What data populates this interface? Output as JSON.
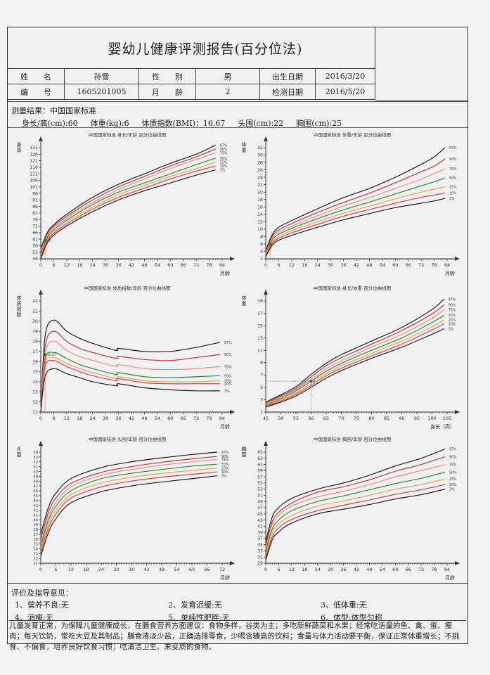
{
  "header": {
    "title": "婴幼儿健康评测报告(百分位法)"
  },
  "info": {
    "name_label": "姓　　名",
    "name": "孙雪",
    "sex_label": "性　　别",
    "sex": "男",
    "birth_label": "出生日期",
    "birth": "2016/3/20",
    "id_label": "编　　号",
    "id": "1605201005",
    "age_label": "月　　龄",
    "age": "2",
    "test_label": "检测日期",
    "test_date": "2016/5/20"
  },
  "measurement": {
    "heading": "测量结果：中国国家标准",
    "height": "身长/高(cm):60",
    "weight": "体重(kg):6",
    "bmi": "体质指数(BMI)：16.67",
    "head": "头围(cm):22",
    "chest": "胸围(cm):25"
  },
  "colors": {
    "p97": "#1e1e1e",
    "p90": "#c0353a",
    "p75": "#f09070",
    "p50": "#2e8a34",
    "p25": "#f0a050",
    "p10": "#d8404a",
    "p3": "#1e1e1e"
  },
  "chart_data": [
    {
      "type": "line",
      "title": "中国国家标准 身长/年龄 百分位曲线图",
      "ylabel": "身高",
      "xlabel": "月龄",
      "xlim": [
        0,
        84
      ],
      "ylim": [
        46,
        131
      ],
      "xticks": [
        0,
        6,
        12,
        18,
        24,
        30,
        36,
        42,
        48,
        54,
        60,
        66,
        72,
        78,
        84
      ],
      "yticks": [
        46,
        51,
        56,
        61,
        66,
        71,
        76,
        81,
        86,
        91,
        96,
        101,
        106,
        111,
        116,
        121,
        126,
        131
      ],
      "x": [
        0,
        3,
        6,
        12,
        24,
        36,
        48,
        60,
        72,
        81
      ],
      "series": [
        {
          "name": "97%",
          "values": [
            54,
            66,
            72,
            80,
            93,
            103,
            111,
            119,
            126,
            133
          ]
        },
        {
          "name": "90%",
          "values": [
            53,
            65,
            71,
            78.5,
            91,
            101,
            109,
            117,
            124,
            130
          ]
        },
        {
          "name": "75%",
          "values": [
            52,
            63.5,
            69.5,
            77,
            89,
            99,
            107,
            115,
            122,
            127
          ]
        },
        {
          "name": "50%",
          "values": [
            50,
            62,
            68,
            75.5,
            87.5,
            97,
            104,
            111,
            118,
            123
          ]
        },
        {
          "name": "25%",
          "values": [
            48.5,
            60.5,
            66.5,
            74,
            85.5,
            95,
            102,
            109,
            115,
            120
          ]
        },
        {
          "name": "10%",
          "values": [
            47.5,
            59.5,
            65.5,
            72.5,
            84,
            93,
            100,
            107,
            113,
            117
          ]
        },
        {
          "name": "3%",
          "values": [
            46,
            58,
            64,
            71,
            82,
            91,
            98,
            104,
            110,
            114
          ]
        }
      ],
      "point": {
        "x": 2,
        "y": 60,
        "label": "60"
      }
    },
    {
      "type": "line",
      "title": "中国国家标准 体重/年龄 百分位曲线图",
      "ylabel": "体重",
      "xlabel": "月龄",
      "xlim": [
        0,
        84
      ],
      "ylim": [
        2,
        32
      ],
      "xticks": [
        0,
        6,
        12,
        18,
        24,
        30,
        36,
        42,
        48,
        54,
        60,
        66,
        72,
        78,
        84
      ],
      "yticks": [
        2,
        4,
        6,
        8,
        10,
        12,
        14,
        16,
        18,
        20,
        22,
        24,
        26,
        28,
        30,
        32
      ],
      "x": [
        0,
        3,
        6,
        12,
        24,
        36,
        48,
        60,
        72,
        78,
        83
      ],
      "series": [
        {
          "name": "97%",
          "values": [
            4.3,
            8.5,
            10.5,
            12.3,
            15.5,
            18.5,
            21,
            24,
            27.5,
            29.5,
            32
          ]
        },
        {
          "name": "90%",
          "values": [
            4,
            8,
            9.8,
            11.5,
            14.5,
            17.2,
            19.7,
            22.5,
            25.5,
            27,
            29
          ]
        },
        {
          "name": "75%",
          "values": [
            3.7,
            7.5,
            9.2,
            10.8,
            13.6,
            16.2,
            18.5,
            21,
            23.5,
            25,
            26.3
          ]
        },
        {
          "name": "50%",
          "values": [
            3.3,
            7,
            8.6,
            10.2,
            12.8,
            15.2,
            17.3,
            19.5,
            21.7,
            22.8,
            23.8
          ]
        },
        {
          "name": "25%",
          "values": [
            3.1,
            6.5,
            8,
            9.6,
            12,
            14.3,
            16.2,
            18.2,
            20,
            20.8,
            21.5
          ]
        },
        {
          "name": "10%",
          "values": [
            2.9,
            6.1,
            7.5,
            9,
            11.3,
            13.5,
            15.3,
            17,
            18.6,
            19.2,
            19.8
          ]
        },
        {
          "name": "3%",
          "values": [
            2.6,
            5.6,
            7,
            8.3,
            10.5,
            12.5,
            14.2,
            15.8,
            17,
            17.6,
            18.3
          ]
        }
      ],
      "point": {
        "x": 2,
        "y": 6,
        "label": ""
      }
    },
    {
      "type": "line",
      "title": "中国国家标准 体质指数/年龄 百分位曲线图",
      "ylabel": "体质指数",
      "xlabel": "月龄",
      "xlim": [
        0,
        84
      ],
      "ylim": [
        11,
        22
      ],
      "xticks": [
        0,
        6,
        12,
        18,
        24,
        30,
        36,
        42,
        48,
        54,
        60,
        66,
        72,
        78,
        84
      ],
      "yticks": [
        11,
        12,
        13,
        14,
        15,
        16,
        17,
        18,
        19,
        20,
        21,
        22
      ],
      "x": [
        0,
        2,
        6,
        12,
        18,
        24,
        35,
        36,
        48,
        60,
        72,
        83
      ],
      "series": [
        {
          "name": "97%",
          "values": [
            11,
            18.5,
            20.1,
            19,
            18.3,
            17.8,
            17.1,
            17.3,
            17,
            17,
            17.4,
            17.9
          ]
        },
        {
          "name": "90%",
          "values": [
            11,
            17.5,
            19,
            18,
            17.3,
            16.9,
            16.3,
            16.5,
            16.2,
            16.1,
            16.4,
            16.7
          ]
        },
        {
          "name": "75%",
          "values": [
            11,
            16.8,
            18,
            17.1,
            16.5,
            16.1,
            15.5,
            15.7,
            15.3,
            15.2,
            15.3,
            15.5
          ]
        },
        {
          "name": "50%",
          "values": [
            11,
            16.2,
            16.9,
            16.3,
            15.7,
            15.3,
            14.7,
            14.9,
            14.5,
            14.4,
            14.5,
            14.6
          ]
        },
        {
          "name": "25%",
          "values": [
            11,
            15.8,
            16.4,
            15.8,
            15.3,
            14.9,
            14.3,
            14.5,
            14.1,
            14,
            14,
            14.1
          ]
        },
        {
          "name": "10%",
          "values": [
            11,
            15.5,
            16.1,
            15.5,
            15,
            14.6,
            14.1,
            14.3,
            13.9,
            13.8,
            13.8,
            13.8
          ]
        },
        {
          "name": "3%",
          "values": [
            11,
            14.5,
            15.3,
            14.8,
            14.4,
            14,
            13.6,
            13.8,
            13.4,
            13.2,
            13.1,
            13.1
          ]
        }
      ],
      "point": {
        "x": 2,
        "y": 16.67,
        "label": "16.67"
      }
    },
    {
      "type": "line",
      "title": "中国国家标准 身长/体重 百分位曲线图",
      "ylabel": "体重",
      "xlabel": "身长（高）",
      "xlim": [
        45,
        105
      ],
      "ylim": [
        1,
        19
      ],
      "xticks": [
        45,
        50,
        55,
        60,
        65,
        70,
        75,
        80,
        85,
        90,
        95,
        100,
        105
      ],
      "yticks": [
        1,
        3,
        5,
        7,
        9,
        11,
        13,
        15,
        17,
        19
      ],
      "x": [
        45,
        50,
        55,
        60,
        65,
        70,
        80,
        90,
        100,
        104
      ],
      "series": [
        {
          "name": "97%",
          "values": [
            2.6,
            3.8,
            5.1,
            7.1,
            8.9,
            10.3,
            12.5,
            14.7,
            17.6,
            19.3
          ]
        },
        {
          "name": "90%",
          "values": [
            2.4,
            3.6,
            4.8,
            6.7,
            8.5,
            9.8,
            12,
            14.2,
            16.9,
            18.4
          ]
        },
        {
          "name": "75%",
          "values": [
            2.3,
            3.4,
            4.6,
            6.3,
            8,
            9.3,
            11.5,
            13.6,
            16.2,
            17.6
          ]
        },
        {
          "name": "50%",
          "values": [
            2.1,
            3.2,
            4.4,
            6,
            7.6,
            8.9,
            11,
            13,
            15.5,
            16.7
          ]
        },
        {
          "name": "25%",
          "values": [
            2,
            3,
            4.1,
            5.6,
            7.2,
            8.5,
            10.5,
            12.5,
            14.8,
            15.9
          ]
        },
        {
          "name": "10%",
          "values": [
            1.9,
            2.8,
            3.9,
            5.3,
            6.9,
            8.1,
            10.1,
            12,
            14.3,
            15.3
          ]
        },
        {
          "name": "3%",
          "values": [
            1.8,
            2.6,
            3.6,
            5,
            6.5,
            7.7,
            9.7,
            11.5,
            13.6,
            14.5
          ]
        }
      ],
      "point": {
        "x": 60,
        "y": 6,
        "label": "6",
        "guides": true
      }
    },
    {
      "type": "line",
      "title": "中国国家标准 头围/年龄 百分位曲线图",
      "ylabel": "头围",
      "xlabel": "月龄",
      "xlim": [
        0,
        72
      ],
      "ylim": [
        31,
        54
      ],
      "xticks": [
        0,
        6,
        12,
        18,
        24,
        30,
        36,
        42,
        48,
        54,
        60,
        66,
        72
      ],
      "yticks": [
        31,
        32,
        33,
        34,
        35,
        36,
        37,
        38,
        39,
        40,
        41,
        42,
        43,
        44,
        45,
        46,
        47,
        48,
        49,
        50,
        51,
        52,
        53,
        54
      ],
      "x": [
        0,
        3,
        6,
        12,
        24,
        36,
        48,
        60,
        70
      ],
      "series": [
        {
          "name": "97%",
          "values": [
            37,
            42.5,
            45.5,
            48.5,
            50.8,
            52,
            52.8,
            53.5,
            54
          ]
        },
        {
          "name": "90%",
          "values": [
            36,
            41.5,
            44.5,
            47.5,
            49.8,
            51,
            51.9,
            52.6,
            53.1
          ]
        },
        {
          "name": "75%",
          "values": [
            35,
            40.5,
            43.5,
            46.8,
            49.2,
            50.4,
            51.3,
            52,
            52.5
          ]
        },
        {
          "name": "50%",
          "values": [
            34.5,
            39.8,
            42.8,
            46,
            48.5,
            49.6,
            50.4,
            51.1,
            51.5
          ]
        },
        {
          "name": "25%",
          "values": [
            34,
            39,
            42,
            45.2,
            47.6,
            48.8,
            49.6,
            50.2,
            50.7
          ]
        },
        {
          "name": "10%",
          "values": [
            33.3,
            38.2,
            41.2,
            44.5,
            46.8,
            48,
            48.8,
            49.4,
            49.9
          ]
        },
        {
          "name": "3%",
          "values": [
            32.5,
            37.3,
            40.2,
            43.5,
            45.8,
            47,
            47.8,
            48.5,
            49.1
          ]
        }
      ]
    },
    {
      "type": "line",
      "title": "中国国家标准 胸围/年龄 百分位曲线图",
      "ylabel": "胸围",
      "xlabel": "月龄",
      "xlim": [
        0,
        84
      ],
      "ylim": [
        29,
        65
      ],
      "xticks": [
        0,
        6,
        12,
        18,
        24,
        30,
        36,
        42,
        48,
        54,
        60,
        66,
        72,
        78,
        84
      ],
      "yticks": [
        29,
        31,
        33,
        35,
        37,
        39,
        41,
        43,
        45,
        47,
        49,
        51,
        53,
        55,
        57,
        59,
        61,
        63,
        65
      ],
      "x": [
        0,
        3,
        6,
        12,
        24,
        36,
        48,
        60,
        72,
        83
      ],
      "series": [
        {
          "name": "97%",
          "values": [
            36,
            44,
            47,
            50,
            53,
            55,
            57.5,
            60.5,
            63,
            66
          ]
        },
        {
          "name": "90%",
          "values": [
            35,
            42.5,
            45.5,
            48.5,
            52,
            53.8,
            56,
            58.8,
            61,
            63.5
          ]
        },
        {
          "name": "75%",
          "values": [
            34,
            41.5,
            44.5,
            47.5,
            50.5,
            52.3,
            54.5,
            57,
            59,
            61
          ]
        },
        {
          "name": "50%",
          "values": [
            33,
            40,
            43,
            46,
            49,
            50.8,
            52.8,
            54.8,
            56.5,
            58.5
          ]
        },
        {
          "name": "25%",
          "values": [
            32,
            38.8,
            41.8,
            44.5,
            47.5,
            49.2,
            51,
            53,
            54.5,
            56.3
          ]
        },
        {
          "name": "10%",
          "values": [
            31,
            37.5,
            40.5,
            43.2,
            46,
            47.8,
            49.5,
            51.3,
            52.8,
            54.5
          ]
        },
        {
          "name": "3%",
          "values": [
            30,
            36.5,
            39.2,
            42,
            45,
            46.5,
            48,
            49.8,
            51.2,
            53
          ]
        }
      ]
    }
  ],
  "evaluation": {
    "heading": "评价及指导意见：",
    "items": [
      "1、营养不良:无",
      "2、发育迟缓:无",
      "3、低体重:无",
      "4、消瘦:无",
      "5、单纯性肥胖:无",
      "6、体型:体型匀称"
    ],
    "advice": "儿童发育正常，为保障儿童健康成长，在膳食营养方面建议：食物多样，谷类为主；多吃新鲜蔬菜和水果；经常吃适量的鱼、禽、蛋、瘦肉；每天饮奶，常吃大豆及其制品；膳食清淡少盐，正确选择零食，少喝含糖高的饮料；食量与体力活动要平衡，保证正常体重增长；不挑食、不偏食，培养良好饮食习惯；吃清洁卫生、未变质的食物。"
  }
}
